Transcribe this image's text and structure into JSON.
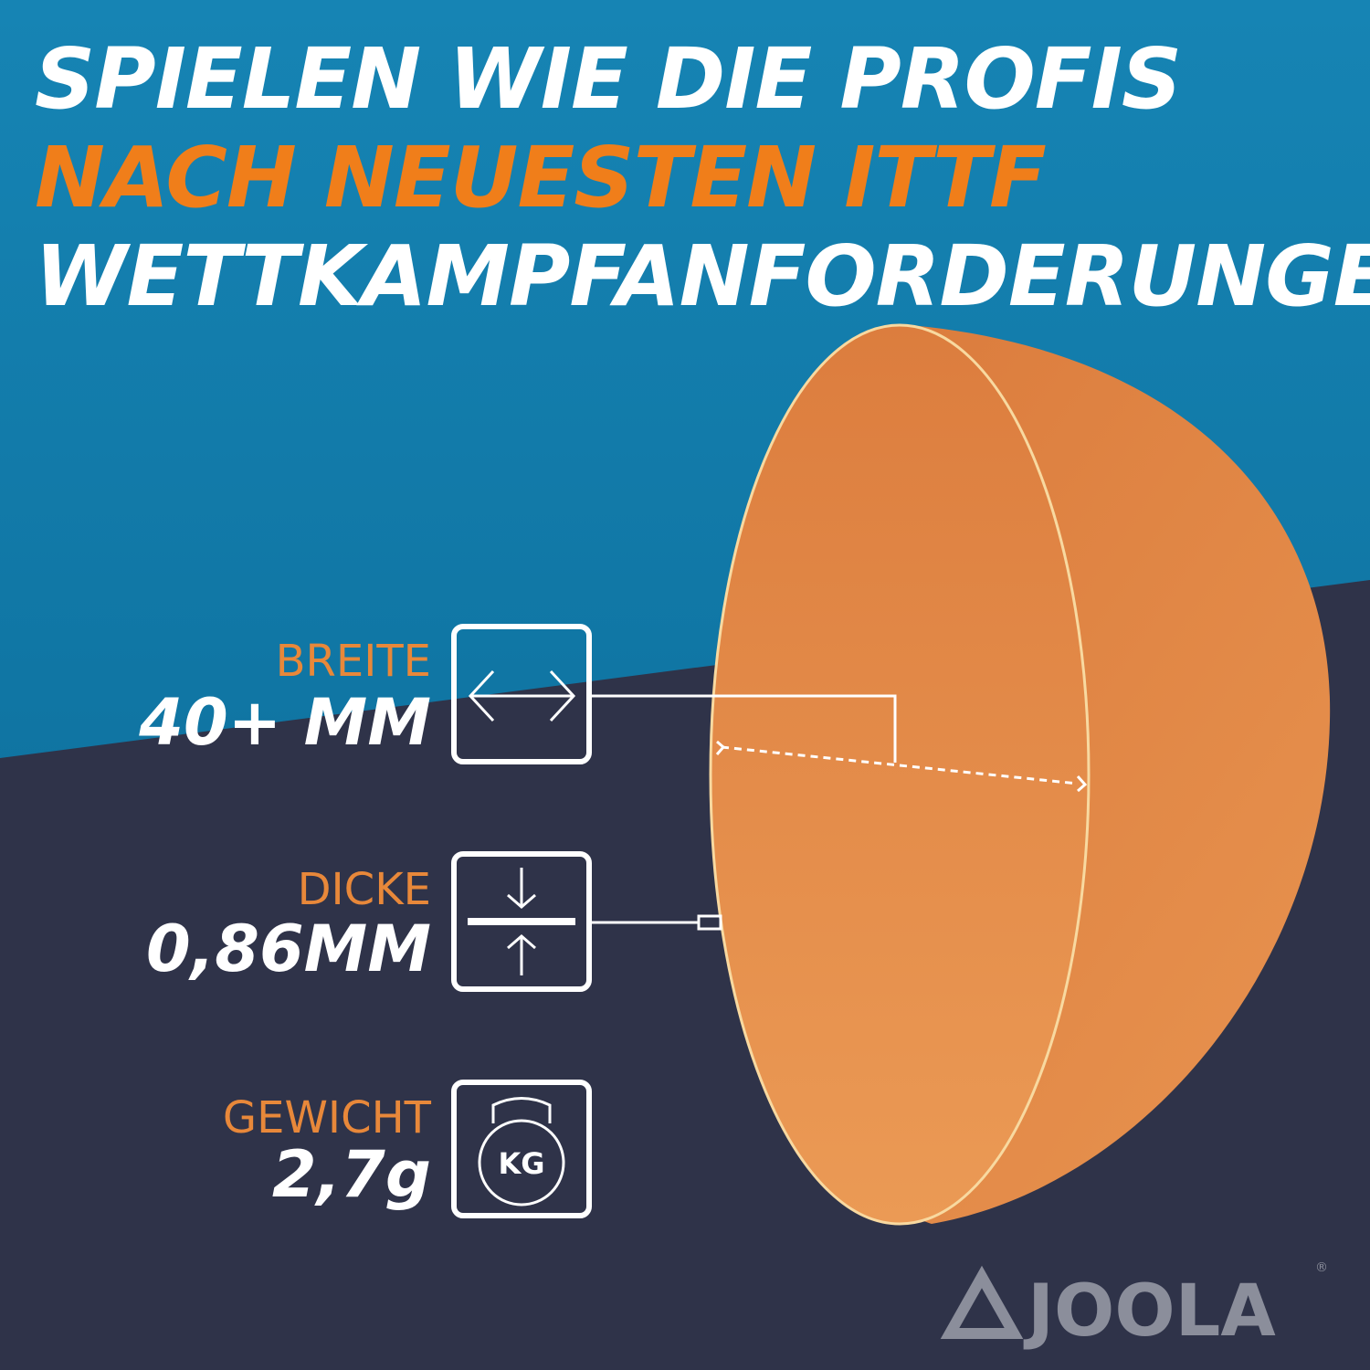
{
  "header": {
    "lines": [
      "SPIELEN WIE DIE PROFIS",
      "NACH NEUESTEN ITTF",
      "WETTKAMPFANFORDERUNGEN"
    ]
  },
  "specs": [
    {
      "label": "BREITE",
      "value": "40+ MM"
    },
    {
      "label": "DICKE",
      "value": "0,86MM"
    },
    {
      "label": "GEWICHT",
      "value": "2,7g",
      "icon_text": "KG"
    }
  ],
  "logo": {
    "name": "JOOLA",
    "mark": "®"
  }
}
